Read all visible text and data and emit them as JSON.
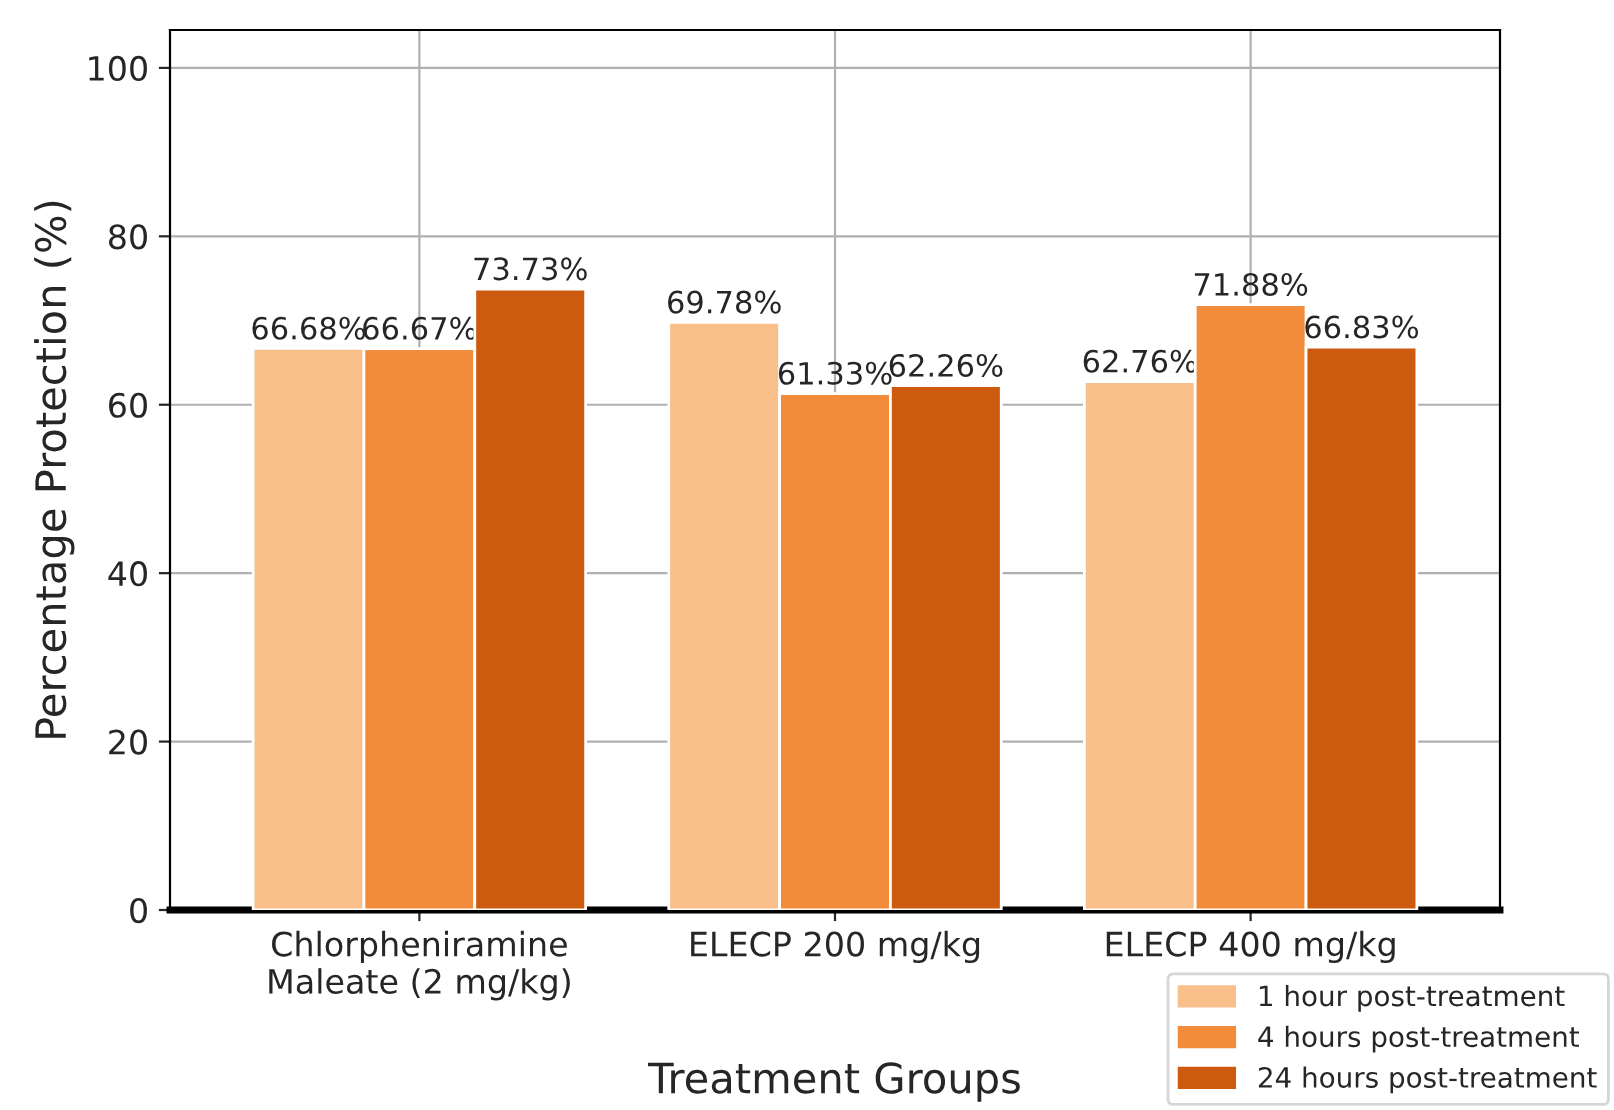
{
  "chart_data": {
    "type": "bar",
    "xlabel": "Treatment Groups",
    "ylabel": "Percentage Protection (%)",
    "categories": [
      "Chlorpheniramine\nMaleate (2 mg/kg)",
      "ELECP 200 mg/kg",
      "ELECP 400 mg/kg"
    ],
    "series": [
      {
        "name": "1 hour post-treatment",
        "color": "#f9bf8a",
        "values": [
          66.68,
          69.78,
          62.76
        ],
        "value_labels": [
          "66.68%",
          "69.78%",
          "62.76%"
        ]
      },
      {
        "name": "4 hours post-treatment",
        "color": "#f28c3a",
        "values": [
          66.67,
          61.33,
          71.88
        ],
        "value_labels": [
          "66.67%",
          "61.33%",
          "71.88%"
        ]
      },
      {
        "name": "24 hours post-treatment",
        "color": "#cc5a0f",
        "values": [
          73.73,
          62.26,
          66.83
        ],
        "value_labels": [
          "73.73%",
          "62.26%",
          "66.83%"
        ]
      }
    ],
    "ylim": [
      0,
      104.5
    ],
    "yticks": [
      0,
      20,
      40,
      60,
      80,
      100
    ],
    "grid": true,
    "legend": "bottom right"
  }
}
